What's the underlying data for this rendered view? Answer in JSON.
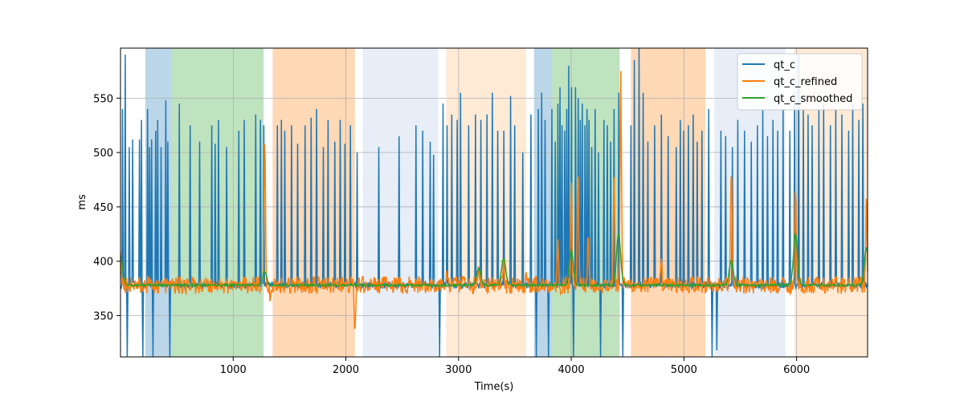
{
  "chart_data": {
    "type": "line",
    "xlabel": "Time(s)",
    "ylabel": "ms",
    "xlim": [
      0,
      6630
    ],
    "ylim": [
      312,
      596
    ],
    "xticks": [
      1000,
      2000,
      3000,
      4000,
      5000,
      6000
    ],
    "yticks": [
      350,
      400,
      450,
      500,
      550
    ],
    "grid": true,
    "legend_position": "top-right",
    "spans": [
      {
        "x0": 220,
        "x1": 450,
        "color": "#1f77b4",
        "alpha": 0.3
      },
      {
        "x0": 450,
        "x1": 1270,
        "color": "#2ca02c",
        "alpha": 0.3
      },
      {
        "x0": 1350,
        "x1": 2080,
        "color": "#ff7f0e",
        "alpha": 0.3
      },
      {
        "x0": 2150,
        "x1": 2820,
        "color": "#aec7e8",
        "alpha": 0.3
      },
      {
        "x0": 2890,
        "x1": 3600,
        "color": "#ffbb78",
        "alpha": 0.3
      },
      {
        "x0": 3670,
        "x1": 3830,
        "color": "#1f77b4",
        "alpha": 0.3
      },
      {
        "x0": 3830,
        "x1": 4430,
        "color": "#2ca02c",
        "alpha": 0.3
      },
      {
        "x0": 4530,
        "x1": 5190,
        "color": "#ff7f0e",
        "alpha": 0.3
      },
      {
        "x0": 5270,
        "x1": 5900,
        "color": "#aec7e8",
        "alpha": 0.3
      },
      {
        "x0": 5980,
        "x1": 6630,
        "color": "#ffbb78",
        "alpha": 0.3
      }
    ],
    "series": [
      {
        "name": "qt_c",
        "color": "#1f77b4",
        "baseline": 378,
        "spikes": [
          [
            20,
            540
          ],
          [
            40,
            590
          ],
          [
            60,
            312
          ],
          [
            80,
            505
          ],
          [
            110,
            512
          ],
          [
            170,
            512
          ],
          [
            185,
            530
          ],
          [
            200,
            312
          ],
          [
            240,
            540
          ],
          [
            260,
            505
          ],
          [
            275,
            512
          ],
          [
            290,
            312
          ],
          [
            310,
            520
          ],
          [
            330,
            530
          ],
          [
            360,
            505
          ],
          [
            400,
            548
          ],
          [
            420,
            510
          ],
          [
            440,
            312
          ],
          [
            520,
            545
          ],
          [
            620,
            525
          ],
          [
            700,
            510
          ],
          [
            810,
            525
          ],
          [
            840,
            508
          ],
          [
            870,
            530
          ],
          [
            940,
            505
          ],
          [
            1050,
            520
          ],
          [
            1100,
            530
          ],
          [
            1200,
            535
          ],
          [
            1240,
            530
          ],
          [
            1270,
            525
          ],
          [
            1390,
            525
          ],
          [
            1430,
            530
          ],
          [
            1460,
            520
          ],
          [
            1520,
            525
          ],
          [
            1570,
            508
          ],
          [
            1640,
            525
          ],
          [
            1690,
            532
          ],
          [
            1740,
            540
          ],
          [
            1800,
            505
          ],
          [
            1840,
            530
          ],
          [
            1900,
            510
          ],
          [
            1950,
            530
          ],
          [
            1990,
            508
          ],
          [
            2040,
            525
          ],
          [
            2100,
            500
          ],
          [
            2290,
            505
          ],
          [
            2470,
            515
          ],
          [
            2620,
            525
          ],
          [
            2680,
            520
          ],
          [
            2750,
            510
          ],
          [
            2780,
            498
          ],
          [
            2830,
            312
          ],
          [
            2860,
            545
          ],
          [
            2900,
            525
          ],
          [
            2940,
            535
          ],
          [
            2990,
            530
          ],
          [
            3020,
            555
          ],
          [
            3090,
            525
          ],
          [
            3150,
            535
          ],
          [
            3200,
            530
          ],
          [
            3250,
            535
          ],
          [
            3300,
            555
          ],
          [
            3350,
            520
          ],
          [
            3400,
            520
          ],
          [
            3460,
            552
          ],
          [
            3500,
            525
          ],
          [
            3570,
            500
          ],
          [
            3640,
            535
          ],
          [
            3690,
            312
          ],
          [
            3710,
            540
          ],
          [
            3740,
            555
          ],
          [
            3770,
            530
          ],
          [
            3800,
            312
          ],
          [
            3830,
            540
          ],
          [
            3860,
            510
          ],
          [
            3880,
            545
          ],
          [
            3900,
            560
          ],
          [
            3920,
            525
          ],
          [
            3940,
            520
          ],
          [
            3960,
            540
          ],
          [
            3980,
            580
          ],
          [
            4000,
            560
          ],
          [
            4020,
            312
          ],
          [
            4040,
            560
          ],
          [
            4060,
            550
          ],
          [
            4080,
            530
          ],
          [
            4100,
            545
          ],
          [
            4120,
            525
          ],
          [
            4140,
            540
          ],
          [
            4160,
            530
          ],
          [
            4180,
            505
          ],
          [
            4210,
            540
          ],
          [
            4240,
            500
          ],
          [
            4260,
            312
          ],
          [
            4290,
            530
          ],
          [
            4320,
            525
          ],
          [
            4350,
            510
          ],
          [
            4380,
            540
          ],
          [
            4420,
            555
          ],
          [
            4460,
            312
          ],
          [
            4530,
            525
          ],
          [
            4560,
            585
          ],
          [
            4600,
            596
          ],
          [
            4640,
            555
          ],
          [
            4680,
            510
          ],
          [
            4740,
            525
          ],
          [
            4800,
            535
          ],
          [
            4860,
            515
          ],
          [
            4930,
            505
          ],
          [
            4970,
            530
          ],
          [
            5000,
            520
          ],
          [
            5040,
            525
          ],
          [
            5080,
            535
          ],
          [
            5120,
            510
          ],
          [
            5160,
            520
          ],
          [
            5220,
            540
          ],
          [
            5250,
            312
          ],
          [
            5290,
            318
          ],
          [
            5330,
            520
          ],
          [
            5370,
            515
          ],
          [
            5430,
            505
          ],
          [
            5480,
            530
          ],
          [
            5540,
            520
          ],
          [
            5600,
            510
          ],
          [
            5650,
            525
          ],
          [
            5700,
            540
          ],
          [
            5740,
            515
          ],
          [
            5790,
            530
          ],
          [
            5830,
            520
          ],
          [
            5880,
            540
          ],
          [
            5940,
            520
          ],
          [
            5980,
            555
          ],
          [
            6020,
            590
          ],
          [
            6060,
            540
          ],
          [
            6100,
            535
          ],
          [
            6140,
            525
          ],
          [
            6200,
            540
          ],
          [
            6240,
            545
          ],
          [
            6300,
            525
          ],
          [
            6350,
            540
          ],
          [
            6400,
            535
          ],
          [
            6460,
            520
          ],
          [
            6500,
            545
          ],
          [
            6550,
            530
          ],
          [
            6590,
            545
          ]
        ]
      },
      {
        "name": "qt_c_refined",
        "color": "#ff7f0e",
        "baseline": 378,
        "peaks": [
          [
            0,
            410
          ],
          [
            1280,
            520
          ],
          [
            1330,
            365
          ],
          [
            2080,
            335
          ],
          [
            2900,
            392
          ],
          [
            3180,
            395
          ],
          [
            3400,
            400
          ],
          [
            3600,
            390
          ],
          [
            3880,
            420
          ],
          [
            4000,
            470
          ],
          [
            4060,
            490
          ],
          [
            4150,
            430
          ],
          [
            4380,
            480
          ],
          [
            4440,
            575
          ],
          [
            4800,
            395
          ],
          [
            5420,
            490
          ],
          [
            5990,
            470
          ],
          [
            6620,
            455
          ]
        ]
      },
      {
        "name": "qt_c_smoothed",
        "color": "#2ca02c",
        "baseline": 378,
        "peaks": [
          [
            0,
            405
          ],
          [
            1280,
            390
          ],
          [
            3180,
            393
          ],
          [
            3400,
            403
          ],
          [
            4000,
            410
          ],
          [
            4420,
            425
          ],
          [
            5420,
            400
          ],
          [
            5990,
            425
          ],
          [
            6620,
            412
          ]
        ]
      }
    ]
  }
}
